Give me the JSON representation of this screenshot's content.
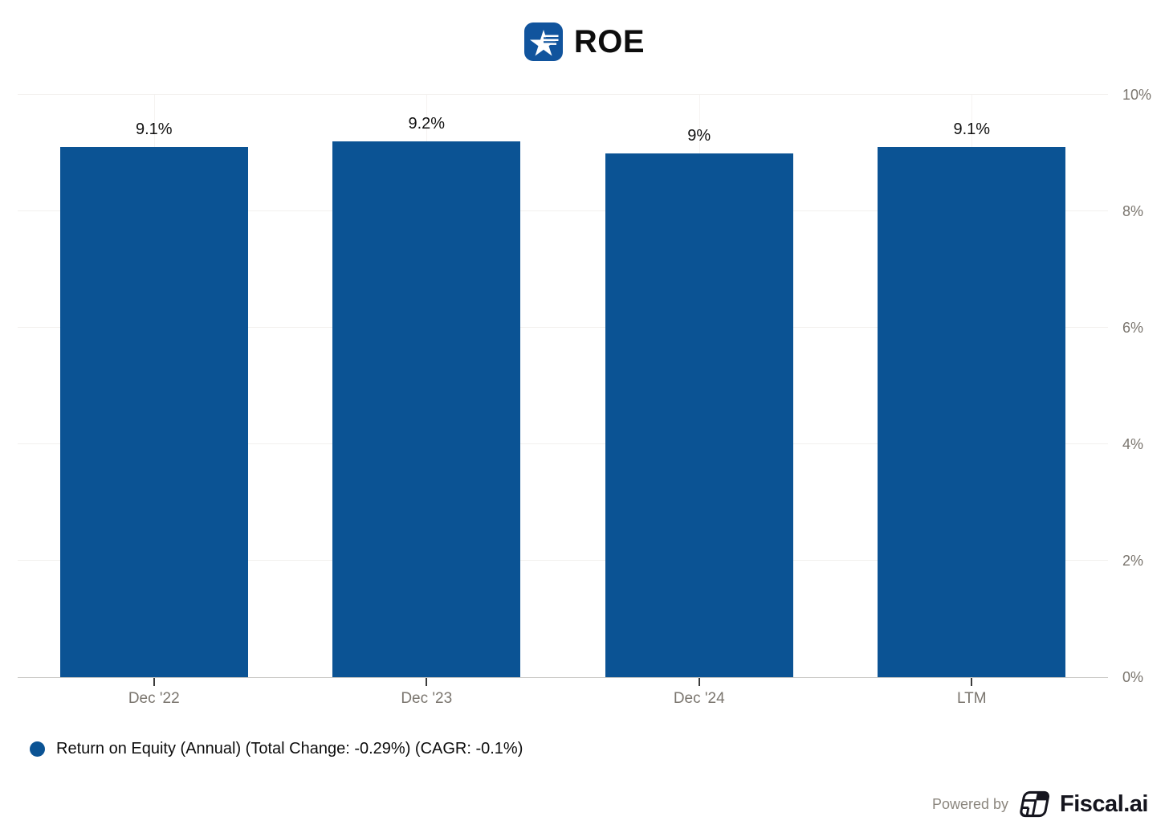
{
  "header": {
    "title": "ROE",
    "logo_icon": "star-stripes-app-icon",
    "logo_color": "#11549d"
  },
  "chart_data": {
    "type": "bar",
    "title": "ROE",
    "categories": [
      "Dec '22",
      "Dec '23",
      "Dec '24",
      "LTM"
    ],
    "values": [
      9.1,
      9.2,
      9.0,
      9.1
    ],
    "value_labels": [
      "9.1%",
      "9.2%",
      "9%",
      "9.1%"
    ],
    "series_name": "Return on Equity (Annual)",
    "xlabel": "",
    "ylabel": "",
    "ylim": [
      0,
      10
    ],
    "y_ticks": [
      0,
      2,
      4,
      6,
      8,
      10
    ],
    "y_tick_labels": [
      "0%",
      "2%",
      "4%",
      "6%",
      "8%",
      "10%"
    ],
    "y_axis_position": "right",
    "grid": true,
    "bar_color": "#0b5394",
    "bar_width_fraction": 0.69,
    "legend_position": "bottom-left"
  },
  "legend": {
    "marker_color": "#0b5394",
    "label": "Return on Equity (Annual) (Total Change: -0.29%) (CAGR: -0.1%)"
  },
  "footer": {
    "powered_by": "Powered by",
    "brand": "Fiscal.ai"
  }
}
